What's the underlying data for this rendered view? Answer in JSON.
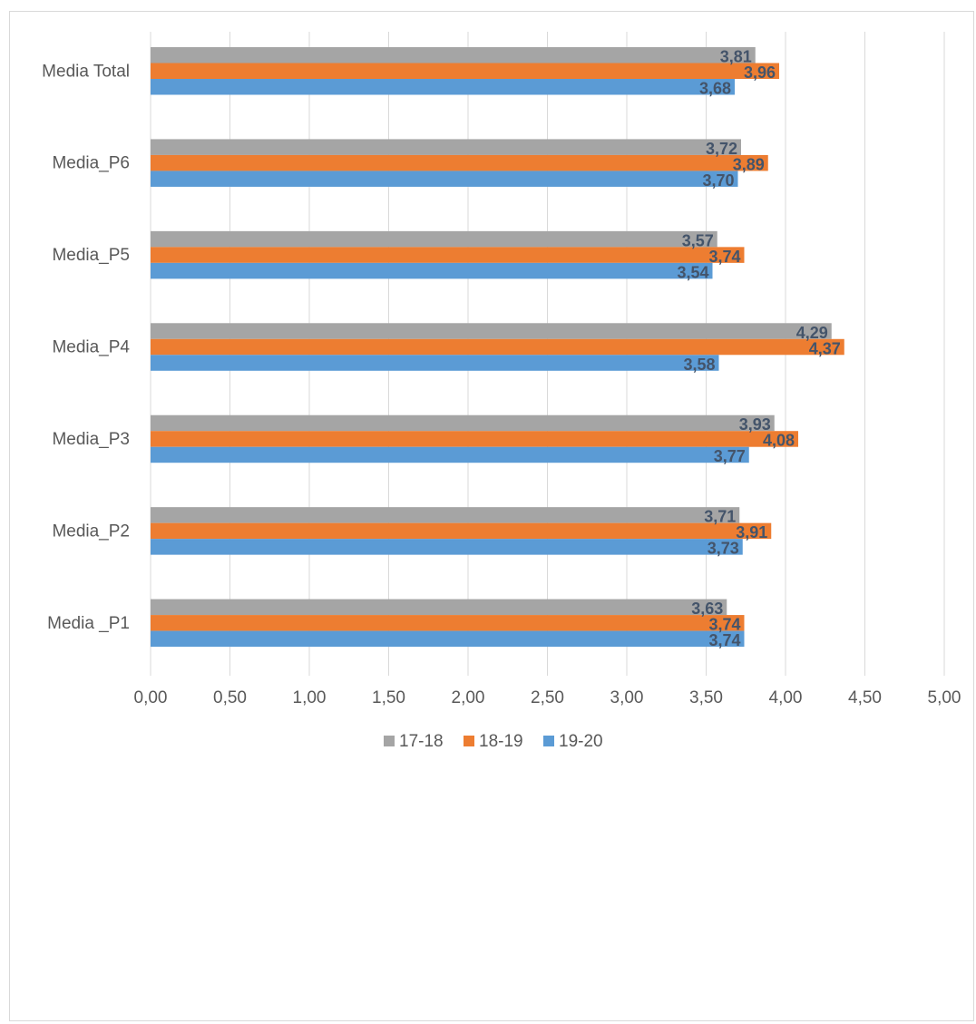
{
  "chart_data": {
    "type": "bar",
    "orientation": "horizontal",
    "categories": [
      "Media Total",
      "Media_P6",
      "Media_P5",
      "Media_P4",
      "Media_P3",
      "Media_P2",
      "Media _P1"
    ],
    "series": [
      {
        "name": "17-18",
        "color": "#a5a5a5",
        "values": [
          3.81,
          3.72,
          3.57,
          4.29,
          3.93,
          3.71,
          3.63
        ],
        "labels": [
          "3,81",
          "3,72",
          "3,57",
          "4,29",
          "3,93",
          "3,71",
          "3,63"
        ]
      },
      {
        "name": "18-19",
        "color": "#ed7d31",
        "values": [
          3.96,
          3.89,
          3.74,
          4.37,
          4.08,
          3.91,
          3.74
        ],
        "labels": [
          "3,96",
          "3,89",
          "3,74",
          "4,37",
          "4,08",
          "3,91",
          "3,74"
        ]
      },
      {
        "name": "19-20",
        "color": "#5b9bd5",
        "values": [
          3.68,
          3.7,
          3.54,
          3.58,
          3.77,
          3.73,
          3.74
        ],
        "labels": [
          "3,68",
          "3,70",
          "3,54",
          "3,58",
          "3,77",
          "3,73",
          "3,74"
        ]
      }
    ],
    "x_ticks": [
      "0,00",
      "0,50",
      "1,00",
      "1,50",
      "2,00",
      "2,50",
      "3,00",
      "3,50",
      "4,00",
      "4,50",
      "5,00"
    ],
    "xlim": [
      0,
      5
    ],
    "grid": true,
    "legend_position": "bottom",
    "title": "",
    "xlabel": "",
    "ylabel": ""
  }
}
